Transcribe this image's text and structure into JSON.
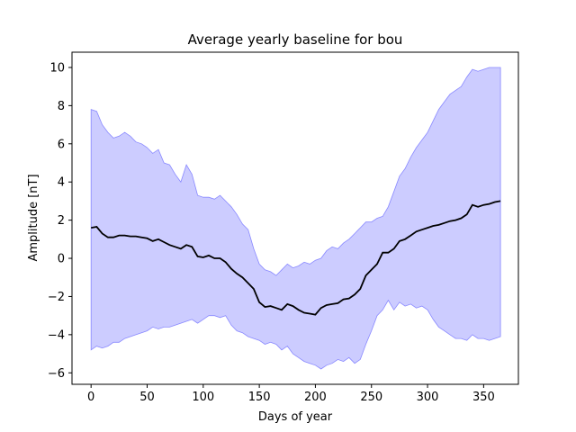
{
  "chart_data": {
    "type": "line",
    "title": "Average yearly baseline for bou",
    "xlabel": "Days of year",
    "ylabel": "Amplitude [nT]",
    "xlim": [
      -17,
      381
    ],
    "ylim": [
      -6.6,
      10.8
    ],
    "xticks": [
      0,
      50,
      100,
      150,
      200,
      250,
      300,
      350
    ],
    "yticks": [
      -6,
      -4,
      -2,
      0,
      2,
      4,
      6,
      8,
      10
    ],
    "grid": false,
    "colors": {
      "mean_line": "#000000",
      "band_fill": "#ccccff",
      "band_edge": "#8888ff"
    },
    "series": [
      {
        "role": "mean",
        "x": [
          0,
          5,
          10,
          15,
          20,
          25,
          30,
          35,
          40,
          45,
          50,
          55,
          60,
          65,
          70,
          75,
          80,
          85,
          90,
          95,
          100,
          105,
          110,
          115,
          120,
          125,
          130,
          135,
          140,
          145,
          150,
          155,
          160,
          165,
          170,
          175,
          180,
          185,
          190,
          195,
          200,
          205,
          210,
          215,
          220,
          225,
          230,
          235,
          240,
          245,
          250,
          255,
          260,
          265,
          270,
          275,
          280,
          285,
          290,
          295,
          300,
          305,
          310,
          315,
          320,
          325,
          330,
          335,
          340,
          345,
          350,
          355,
          360,
          365
        ],
        "y": [
          1.6,
          1.65,
          1.3,
          1.1,
          1.1,
          1.2,
          1.2,
          1.15,
          1.15,
          1.1,
          1.05,
          0.9,
          1.0,
          0.85,
          0.7,
          0.6,
          0.5,
          0.7,
          0.6,
          0.1,
          0.05,
          0.15,
          0.0,
          0.0,
          -0.2,
          -0.55,
          -0.8,
          -1.0,
          -1.3,
          -1.6,
          -2.3,
          -2.55,
          -2.5,
          -2.6,
          -2.7,
          -2.4,
          -2.5,
          -2.7,
          -2.85,
          -2.9,
          -2.95,
          -2.6,
          -2.45,
          -2.4,
          -2.35,
          -2.15,
          -2.1,
          -1.9,
          -1.6,
          -0.9,
          -0.6,
          -0.3,
          0.3,
          0.3,
          0.5,
          0.9,
          1.0,
          1.2,
          1.4,
          1.5,
          1.6,
          1.7,
          1.75,
          1.85,
          1.95,
          2.0,
          2.1,
          2.3,
          2.8,
          2.7,
          2.8,
          2.85,
          2.95,
          3.0
        ]
      },
      {
        "role": "band-upper",
        "x": [
          0,
          5,
          10,
          15,
          20,
          25,
          30,
          35,
          40,
          45,
          50,
          55,
          60,
          65,
          70,
          75,
          80,
          85,
          90,
          95,
          100,
          105,
          110,
          115,
          120,
          125,
          130,
          135,
          140,
          145,
          150,
          155,
          160,
          165,
          170,
          175,
          180,
          185,
          190,
          195,
          200,
          205,
          210,
          215,
          220,
          225,
          230,
          235,
          240,
          245,
          250,
          255,
          260,
          265,
          270,
          275,
          280,
          285,
          290,
          295,
          300,
          305,
          310,
          315,
          320,
          325,
          330,
          335,
          340,
          345,
          350,
          355,
          360,
          365
        ],
        "y": [
          7.8,
          7.7,
          7.0,
          6.6,
          6.3,
          6.4,
          6.6,
          6.4,
          6.1,
          6.0,
          5.8,
          5.5,
          5.7,
          5.0,
          4.9,
          4.4,
          4.0,
          4.9,
          4.4,
          3.3,
          3.2,
          3.2,
          3.1,
          3.3,
          3.0,
          2.7,
          2.3,
          1.8,
          1.5,
          0.5,
          -0.3,
          -0.6,
          -0.7,
          -0.9,
          -0.6,
          -0.3,
          -0.5,
          -0.4,
          -0.2,
          -0.3,
          -0.1,
          0.0,
          0.4,
          0.6,
          0.5,
          0.8,
          1.0,
          1.3,
          1.6,
          1.9,
          1.9,
          2.1,
          2.2,
          2.7,
          3.5,
          4.3,
          4.7,
          5.3,
          5.8,
          6.2,
          6.6,
          7.2,
          7.8,
          8.2,
          8.6,
          8.8,
          9.0,
          9.5,
          9.9,
          9.8,
          9.9,
          10.0,
          10.0,
          10.0
        ]
      },
      {
        "role": "band-lower",
        "x": [
          0,
          5,
          10,
          15,
          20,
          25,
          30,
          35,
          40,
          45,
          50,
          55,
          60,
          65,
          70,
          75,
          80,
          85,
          90,
          95,
          100,
          105,
          110,
          115,
          120,
          125,
          130,
          135,
          140,
          145,
          150,
          155,
          160,
          165,
          170,
          175,
          180,
          185,
          190,
          195,
          200,
          205,
          210,
          215,
          220,
          225,
          230,
          235,
          240,
          245,
          250,
          255,
          260,
          265,
          270,
          275,
          280,
          285,
          290,
          295,
          300,
          305,
          310,
          315,
          320,
          325,
          330,
          335,
          340,
          345,
          350,
          355,
          360,
          365
        ],
        "y": [
          -4.8,
          -4.6,
          -4.7,
          -4.6,
          -4.4,
          -4.4,
          -4.2,
          -4.1,
          -4.0,
          -3.9,
          -3.8,
          -3.6,
          -3.7,
          -3.6,
          -3.6,
          -3.5,
          -3.4,
          -3.3,
          -3.2,
          -3.4,
          -3.2,
          -3.0,
          -3.0,
          -3.1,
          -3.0,
          -3.5,
          -3.8,
          -3.9,
          -4.1,
          -4.2,
          -4.3,
          -4.5,
          -4.4,
          -4.5,
          -4.8,
          -4.6,
          -5.0,
          -5.2,
          -5.4,
          -5.5,
          -5.6,
          -5.8,
          -5.6,
          -5.5,
          -5.3,
          -5.4,
          -5.2,
          -5.5,
          -5.3,
          -4.5,
          -3.8,
          -3.0,
          -2.7,
          -2.2,
          -2.7,
          -2.3,
          -2.5,
          -2.4,
          -2.6,
          -2.5,
          -2.7,
          -3.2,
          -3.6,
          -3.8,
          -4.0,
          -4.2,
          -4.2,
          -4.3,
          -4.0,
          -4.2,
          -4.2,
          -4.3,
          -4.2,
          -4.1
        ]
      }
    ]
  }
}
